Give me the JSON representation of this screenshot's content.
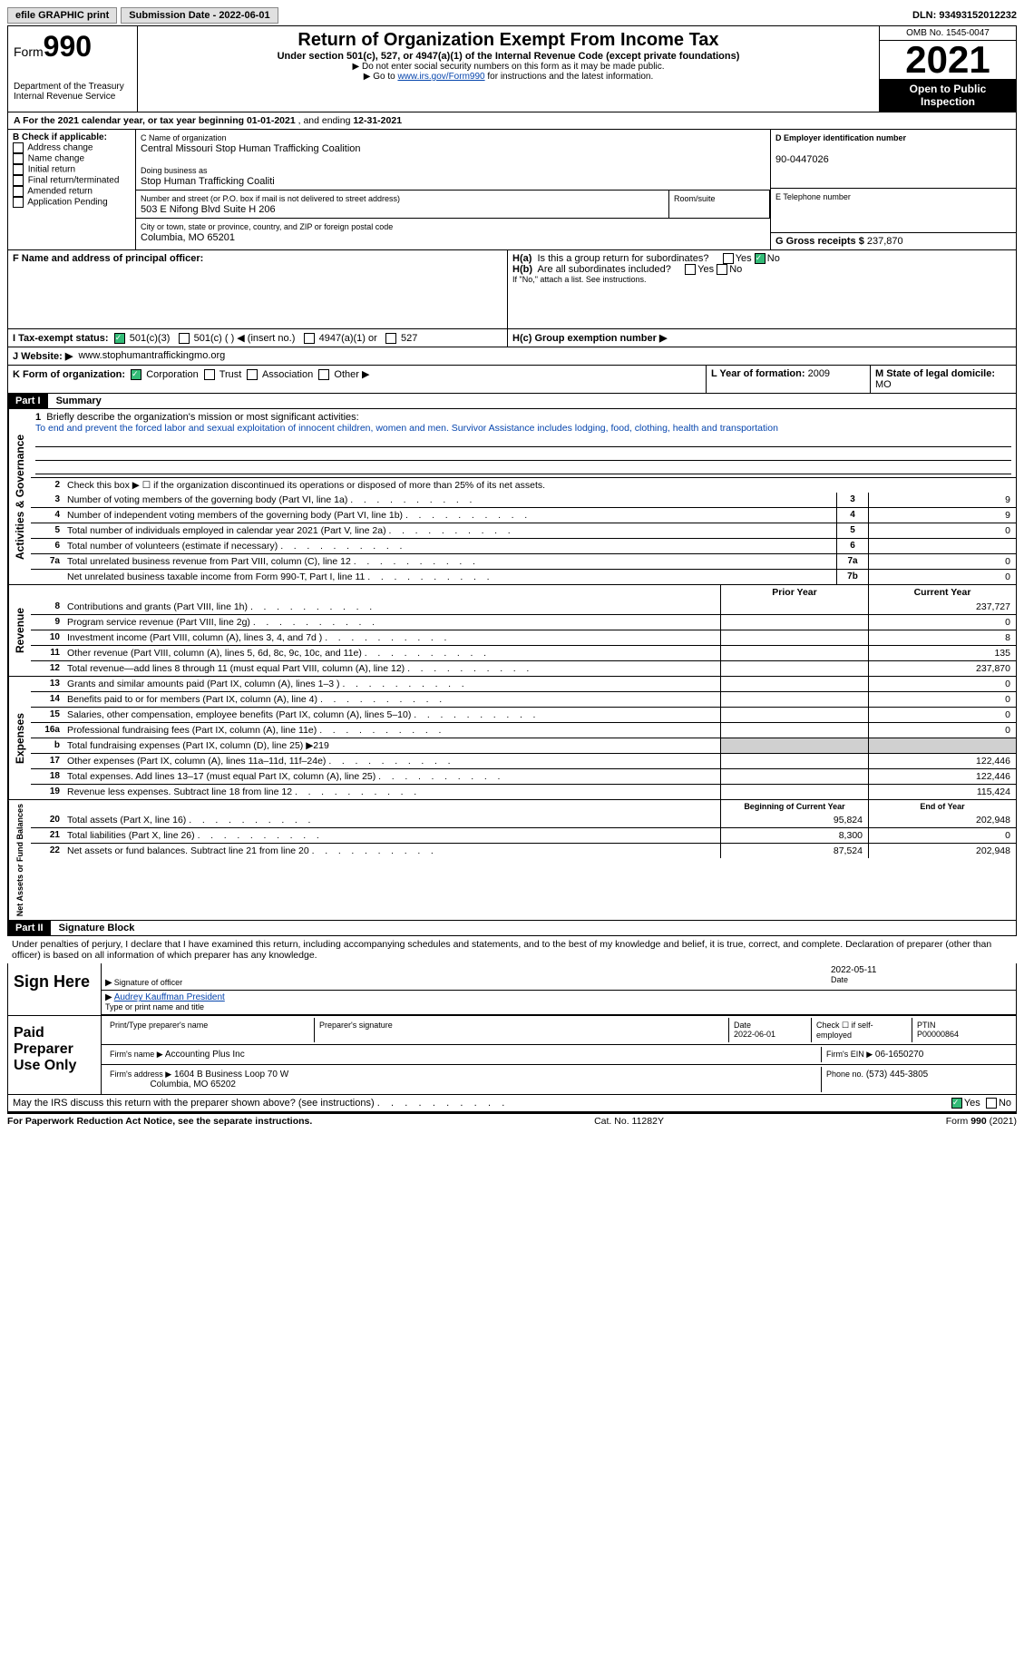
{
  "topbar": {
    "efile": "efile GRAPHIC print",
    "submission_label": "Submission Date - 2022-06-01",
    "dln_label": "DLN: 93493152012232"
  },
  "header": {
    "form_word": "Form",
    "form_num": "990",
    "dept": "Department of the Treasury",
    "irs": "Internal Revenue Service",
    "title": "Return of Organization Exempt From Income Tax",
    "sub": "Under section 501(c), 527, or 4947(a)(1) of the Internal Revenue Code (except private foundations)",
    "note1": "▶ Do not enter social security numbers on this form as it may be made public.",
    "note2_pre": "▶ Go to ",
    "note2_link": "www.irs.gov/Form990",
    "note2_post": " for instructions and the latest information.",
    "omb": "OMB No. 1545-0047",
    "year": "2021",
    "open": "Open to Public Inspection"
  },
  "sectionA": {
    "text_pre": "A For the 2021 calendar year, or tax year beginning ",
    "begin": "01-01-2021",
    "mid": " , and ending ",
    "end": "12-31-2021"
  },
  "colB": {
    "label": "B Check if applicable:",
    "items": [
      "Address change",
      "Name change",
      "Initial return",
      "Final return/terminated",
      "Amended return",
      "Application Pending"
    ]
  },
  "colC": {
    "name_label": "C Name of organization",
    "name": "Central Missouri Stop Human Trafficking Coalition",
    "dba_label": "Doing business as",
    "dba": "Stop Human Trafficking Coaliti",
    "street_label": "Number and street (or P.O. box if mail is not delivered to street address)",
    "room_label": "Room/suite",
    "street": "503 E Nifong Blvd Suite H 206",
    "city_label": "City or town, state or province, country, and ZIP or foreign postal code",
    "city": "Columbia, MO  65201"
  },
  "colD": {
    "ein_label": "D Employer identification number",
    "ein": "90-0447026",
    "phone_label": "E Telephone number",
    "gross_label": "G Gross receipts $",
    "gross": "237,870"
  },
  "rowF": {
    "label": "F  Name and address of principal officer:"
  },
  "rowH": {
    "a": "H(a)  Is this a group return for subordinates?",
    "b": "H(b)  Are all subordinates included?",
    "note": "If \"No,\" attach a list. See instructions.",
    "c": "H(c)  Group exemption number ▶",
    "yes": "Yes",
    "no": "No"
  },
  "rowI": {
    "label": "I    Tax-exempt status:",
    "opts": [
      "501(c)(3)",
      "501(c) (  ) ◀ (insert no.)",
      "4947(a)(1) or",
      "527"
    ]
  },
  "rowJ": {
    "label": "J   Website: ▶",
    "site": "www.stophumantraffickingmo.org"
  },
  "rowK": {
    "label": "K Form of organization:",
    "opts": [
      "Corporation",
      "Trust",
      "Association",
      "Other ▶"
    ],
    "l_label": "L Year of formation:",
    "l_val": "2009",
    "m_label": "M State of legal domicile:",
    "m_val": "MO"
  },
  "part1": {
    "tag": "Part I",
    "title": "Summary"
  },
  "summary": {
    "vlabels": [
      "Activities & Governance",
      "Revenue",
      "Expenses",
      "Net Assets or Fund Balances"
    ],
    "l1_label": "Briefly describe the organization's mission or most significant activities:",
    "l1_text": "To end and prevent the forced labor and sexual exploitation of innocent children, women and men. Survivor Assistance includes lodging, food, clothing, health and transportation",
    "l2": "Check this box ▶ ☐ if the organization discontinued its operations or disposed of more than 25% of its net assets.",
    "lines_ag": [
      {
        "n": "3",
        "t": "Number of voting members of the governing body (Part VI, line 1a)",
        "k": "3",
        "v": "9"
      },
      {
        "n": "4",
        "t": "Number of independent voting members of the governing body (Part VI, line 1b)",
        "k": "4",
        "v": "9"
      },
      {
        "n": "5",
        "t": "Total number of individuals employed in calendar year 2021 (Part V, line 2a)",
        "k": "5",
        "v": "0"
      },
      {
        "n": "6",
        "t": "Total number of volunteers (estimate if necessary)",
        "k": "6",
        "v": ""
      },
      {
        "n": "7a",
        "t": "Total unrelated business revenue from Part VIII, column (C), line 12",
        "k": "7a",
        "v": "0"
      },
      {
        "n": "",
        "t": "Net unrelated business taxable income from Form 990-T, Part I, line 11",
        "k": "7b",
        "v": "0"
      }
    ],
    "col_headers": {
      "prior": "Prior Year",
      "current": "Current Year",
      "boy": "Beginning of Current Year",
      "eoy": "End of Year"
    },
    "lines_rev": [
      {
        "n": "8",
        "t": "Contributions and grants (Part VIII, line 1h)",
        "p": "",
        "c": "237,727"
      },
      {
        "n": "9",
        "t": "Program service revenue (Part VIII, line 2g)",
        "p": "",
        "c": "0"
      },
      {
        "n": "10",
        "t": "Investment income (Part VIII, column (A), lines 3, 4, and 7d )",
        "p": "",
        "c": "8"
      },
      {
        "n": "11",
        "t": "Other revenue (Part VIII, column (A), lines 5, 6d, 8c, 9c, 10c, and 11e)",
        "p": "",
        "c": "135"
      },
      {
        "n": "12",
        "t": "Total revenue—add lines 8 through 11 (must equal Part VIII, column (A), line 12)",
        "p": "",
        "c": "237,870"
      }
    ],
    "lines_exp": [
      {
        "n": "13",
        "t": "Grants and similar amounts paid (Part IX, column (A), lines 1–3 )",
        "p": "",
        "c": "0"
      },
      {
        "n": "14",
        "t": "Benefits paid to or for members (Part IX, column (A), line 4)",
        "p": "",
        "c": "0"
      },
      {
        "n": "15",
        "t": "Salaries, other compensation, employee benefits (Part IX, column (A), lines 5–10)",
        "p": "",
        "c": "0"
      },
      {
        "n": "16a",
        "t": "Professional fundraising fees (Part IX, column (A), line 11e)",
        "p": "",
        "c": "0"
      },
      {
        "n": "b",
        "t": "Total fundraising expenses (Part IX, column (D), line 25) ▶219",
        "grey": true
      },
      {
        "n": "17",
        "t": "Other expenses (Part IX, column (A), lines 11a–11d, 11f–24e)",
        "p": "",
        "c": "122,446"
      },
      {
        "n": "18",
        "t": "Total expenses. Add lines 13–17 (must equal Part IX, column (A), line 25)",
        "p": "",
        "c": "122,446"
      },
      {
        "n": "19",
        "t": "Revenue less expenses. Subtract line 18 from line 12",
        "p": "",
        "c": "115,424"
      }
    ],
    "lines_net": [
      {
        "n": "20",
        "t": "Total assets (Part X, line 16)",
        "p": "95,824",
        "c": "202,948"
      },
      {
        "n": "21",
        "t": "Total liabilities (Part X, line 26)",
        "p": "8,300",
        "c": "0"
      },
      {
        "n": "22",
        "t": "Net assets or fund balances. Subtract line 21 from line 20",
        "p": "87,524",
        "c": "202,948"
      }
    ]
  },
  "part2": {
    "tag": "Part II",
    "title": "Signature Block"
  },
  "sig": {
    "penalty": "Under penalties of perjury, I declare that I have examined this return, including accompanying schedules and statements, and to the best of my knowledge and belief, it is true, correct, and complete. Declaration of preparer (other than officer) is based on all information of which preparer has any knowledge.",
    "sign_here": "Sign Here",
    "sig_officer": "Signature of officer",
    "date": "Date",
    "sig_date": "2022-05-11",
    "name_title": "Audrey Kauffman  President",
    "type_name": "Type or print name and title",
    "paid": "Paid Preparer Use Only",
    "prep_name_label": "Print/Type preparer's name",
    "prep_sig_label": "Preparer's signature",
    "prep_date_label": "Date",
    "prep_date": "2022-06-01",
    "check_self": "Check ☐ if self-employed",
    "ptin_label": "PTIN",
    "ptin": "P00000864",
    "firm_name_label": "Firm's name   ▶",
    "firm_name": "Accounting Plus Inc",
    "firm_ein_label": "Firm's EIN ▶",
    "firm_ein": "06-1650270",
    "firm_addr_label": "Firm's address ▶",
    "firm_addr": "1604 B Business Loop 70 W",
    "firm_city": "Columbia, MO  65202",
    "firm_phone_label": "Phone no.",
    "firm_phone": "(573) 445-3805",
    "may_irs": "May the IRS discuss this return with the preparer shown above? (see instructions)",
    "yes": "Yes",
    "no": "No"
  },
  "footer": {
    "pra": "For Paperwork Reduction Act Notice, see the separate instructions.",
    "cat": "Cat. No. 11282Y",
    "form": "Form 990 (2021)"
  }
}
